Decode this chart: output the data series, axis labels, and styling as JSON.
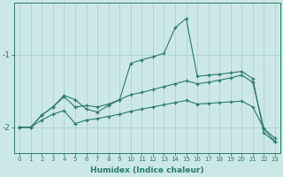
{
  "xlabel": "Humidex (Indice chaleur)",
  "background_color": "#cce8e6",
  "grid_color": "#aad4d0",
  "line_color": "#2a7a6a",
  "x_values": [
    0,
    1,
    2,
    3,
    4,
    5,
    6,
    7,
    8,
    9,
    10,
    11,
    12,
    13,
    14,
    15,
    16,
    17,
    18,
    19,
    20,
    21,
    22,
    23
  ],
  "line1": [
    -2.0,
    -2.0,
    -1.83,
    -1.72,
    -1.56,
    -1.62,
    -1.75,
    -1.79,
    -1.7,
    -1.62,
    -1.12,
    -1.07,
    -1.03,
    -0.98,
    -0.63,
    -0.5,
    -1.3,
    -1.28,
    -1.27,
    -1.25,
    -1.23,
    -1.33,
    -2.08,
    -2.2
  ],
  "line2": [
    -2.0,
    -2.0,
    -1.83,
    -1.72,
    -1.58,
    -1.72,
    -1.7,
    -1.72,
    -1.68,
    -1.62,
    -1.55,
    -1.52,
    -1.48,
    -1.44,
    -1.4,
    -1.36,
    -1.4,
    -1.38,
    -1.35,
    -1.32,
    -1.28,
    -1.38,
    -2.02,
    -2.15
  ],
  "line3": [
    -2.0,
    -2.0,
    -1.9,
    -1.82,
    -1.77,
    -1.95,
    -1.9,
    -1.88,
    -1.85,
    -1.82,
    -1.78,
    -1.75,
    -1.72,
    -1.69,
    -1.66,
    -1.63,
    -1.68,
    -1.67,
    -1.66,
    -1.65,
    -1.64,
    -1.72,
    -2.02,
    -2.2
  ],
  "ylim": [
    -2.35,
    -0.28
  ],
  "yticks": [
    -2.0,
    -1.0
  ],
  "xlim": [
    -0.5,
    23.5
  ]
}
